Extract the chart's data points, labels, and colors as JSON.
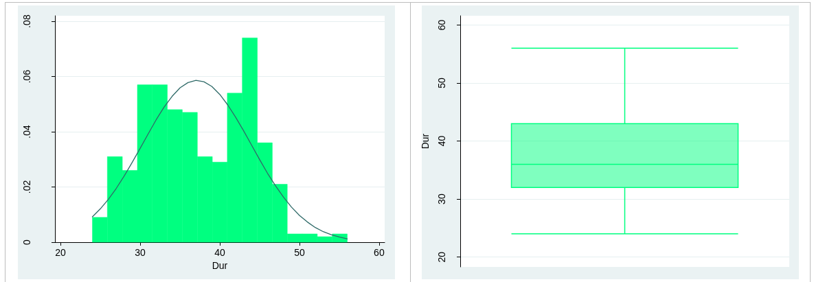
{
  "chart_data": [
    {
      "type": "histogram",
      "xlabel": "Dur",
      "bins": [
        24,
        25.88,
        27.76,
        29.65,
        31.53,
        33.41,
        35.29,
        37.18,
        39.06,
        40.94,
        42.82,
        44.71,
        46.59,
        48.47,
        50.35,
        52.24,
        54.12,
        56
      ],
      "series": [
        {
          "type": "histogram",
          "color": "#00ff80",
          "values": [
            0.009,
            0.031,
            0.026,
            0.057,
            0.057,
            0.048,
            0.047,
            0.031,
            0.029,
            0.054,
            0.074,
            0.036,
            0.021,
            0.003,
            0.003,
            0.002,
            0.003
          ]
        },
        {
          "type": "line",
          "color": "#2f6a68",
          "x": [
            24,
            25,
            26,
            27,
            28,
            29,
            30,
            31,
            32,
            33,
            34,
            35,
            36,
            37,
            38,
            39,
            40,
            41,
            42,
            43,
            44,
            45,
            46,
            47,
            48,
            49,
            50,
            51,
            52,
            53,
            54,
            55,
            56
          ],
          "values": [
            0.0092,
            0.0121,
            0.0155,
            0.0195,
            0.024,
            0.0289,
            0.034,
            0.0392,
            0.0443,
            0.0489,
            0.0528,
            0.0559,
            0.0578,
            0.0586,
            0.0581,
            0.0564,
            0.0535,
            0.0497,
            0.0452,
            0.0403,
            0.0351,
            0.0299,
            0.0249,
            0.0204,
            0.0163,
            0.0127,
            0.0097,
            0.0073,
            0.0053,
            0.0038,
            0.0027,
            0.0019,
            0.0012
          ]
        }
      ],
      "xlim": [
        19.3,
        60.7
      ],
      "xticks": [
        20,
        30,
        40,
        50,
        60
      ],
      "ylim": [
        0,
        0.082
      ],
      "yticks": [
        0,
        {
          "value": 0.02,
          "label": ".02"
        },
        {
          "value": 0.04,
          "label": ".04"
        },
        {
          "value": 0.06,
          "label": ".06"
        },
        {
          "value": 0.08,
          "label": ".08"
        }
      ],
      "grid": "y",
      "marker": "none"
    },
    {
      "type": "box",
      "ylabel": "Dur",
      "categories": [
        null
      ],
      "boxes": [
        {
          "low": 24,
          "q1": 32,
          "median": 36,
          "q3": 43,
          "high": 56
        }
      ],
      "color": "#00ff80",
      "ylim": [
        18.3,
        61.6
      ],
      "yticks": [
        20,
        30,
        40,
        50,
        60
      ],
      "grid": "y",
      "tick_labels": "y"
    }
  ]
}
